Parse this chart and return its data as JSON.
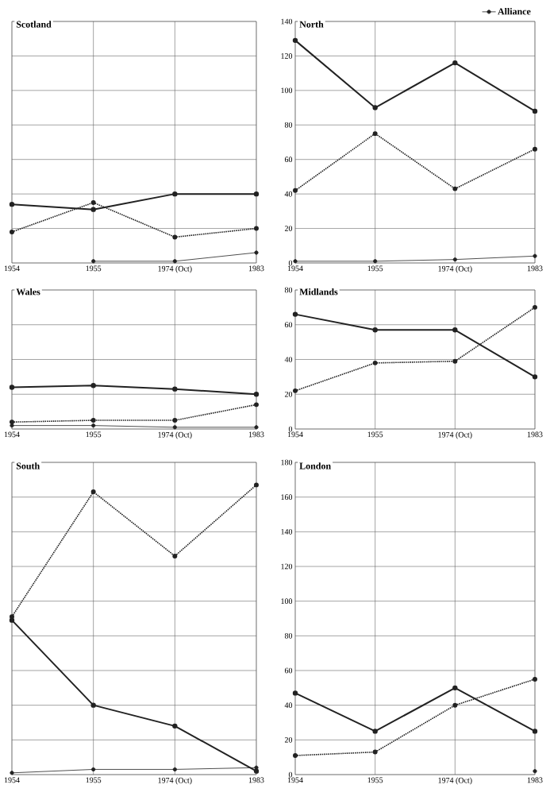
{
  "chart_data": [
    {
      "type": "line",
      "title": "Scotland",
      "categories": [
        "1954",
        "1955",
        "1974 (Oct)",
        "1983"
      ],
      "ylim": [
        0,
        140
      ],
      "yticks": [
        0,
        20,
        40,
        60,
        80,
        100,
        120,
        140
      ],
      "grid": true,
      "tick_labels": "x",
      "marker": "circle",
      "series": [
        {
          "color": "#222222",
          "line_style": "solid",
          "values": [
            34,
            31,
            40,
            40
          ]
        },
        {
          "color": "#222222",
          "line_style": "dotted",
          "values": [
            18,
            35,
            15,
            20
          ]
        },
        {
          "color": "#222222",
          "line_style": "solid",
          "values": [
            null,
            1,
            1,
            6
          ]
        }
      ]
    },
    {
      "type": "line",
      "title": "North",
      "categories": [
        "1954",
        "1955",
        "1974 (Oct)",
        "1983"
      ],
      "ylim": [
        0,
        140
      ],
      "yticks": [
        0,
        20,
        40,
        60,
        80,
        100,
        120,
        140
      ],
      "grid": true,
      "legend": "top right",
      "marker": "circle",
      "series": [
        {
          "color": "#222222",
          "line_style": "solid",
          "values": [
            129,
            90,
            116,
            88
          ]
        },
        {
          "color": "#222222",
          "line_style": "dotted",
          "values": [
            42,
            75,
            43,
            66
          ]
        },
        {
          "name": "Alliance",
          "color": "#222222",
          "line_style": "solid",
          "values": [
            1,
            1,
            2,
            4
          ]
        }
      ]
    },
    {
      "type": "line",
      "title": "Wales",
      "categories": [
        "1954",
        "1955",
        "1974 (Oct)",
        "1983"
      ],
      "ylim": [
        0,
        80
      ],
      "yticks": [
        0,
        20,
        40,
        60,
        80
      ],
      "grid": true,
      "tick_labels": "x",
      "marker": "circle",
      "series": [
        {
          "color": "#222222",
          "line_style": "solid",
          "values": [
            24,
            25,
            23,
            20
          ]
        },
        {
          "color": "#222222",
          "line_style": "dotted",
          "values": [
            4,
            5,
            5,
            14
          ]
        },
        {
          "color": "#222222",
          "line_style": "solid",
          "values": [
            2,
            2,
            1,
            1
          ]
        }
      ]
    },
    {
      "type": "line",
      "title": "Midlands",
      "categories": [
        "1954",
        "1955",
        "1974 (Oct)",
        "1983"
      ],
      "ylim": [
        0,
        80
      ],
      "yticks": [
        0,
        20,
        40,
        60,
        80
      ],
      "grid": true,
      "marker": "circle",
      "series": [
        {
          "color": "#222222",
          "line_style": "solid",
          "values": [
            66,
            57,
            57,
            30
          ]
        },
        {
          "color": "#222222",
          "line_style": "dotted",
          "values": [
            22,
            38,
            39,
            70
          ]
        }
      ]
    },
    {
      "type": "line",
      "title": "South",
      "categories": [
        "1954",
        "1955",
        "1974 (Oct)",
        "1983"
      ],
      "ylim": [
        0,
        180
      ],
      "yticks": [
        0,
        20,
        40,
        60,
        80,
        100,
        120,
        140,
        160,
        180
      ],
      "grid": true,
      "tick_labels": "x",
      "marker": "circle",
      "series": [
        {
          "color": "#222222",
          "line_style": "solid",
          "values": [
            89,
            40,
            28,
            2
          ]
        },
        {
          "color": "#222222",
          "line_style": "dotted",
          "values": [
            91,
            163,
            126,
            167
          ]
        },
        {
          "color": "#222222",
          "line_style": "solid",
          "values": [
            1,
            3,
            3,
            4
          ]
        }
      ]
    },
    {
      "type": "line",
      "title": "London",
      "categories": [
        "1954",
        "1955",
        "1974 (Oct)",
        "1983"
      ],
      "ylim": [
        0,
        180
      ],
      "yticks": [
        0,
        20,
        40,
        60,
        80,
        100,
        120,
        140,
        160,
        180
      ],
      "grid": true,
      "marker": "circle",
      "series": [
        {
          "color": "#222222",
          "line_style": "solid",
          "values": [
            47,
            25,
            50,
            25
          ]
        },
        {
          "color": "#222222",
          "line_style": "dotted",
          "values": [
            11,
            13,
            40,
            55
          ]
        },
        {
          "color": "#222222",
          "line_style": "solid",
          "values": [
            null,
            null,
            null,
            2
          ]
        }
      ]
    }
  ]
}
